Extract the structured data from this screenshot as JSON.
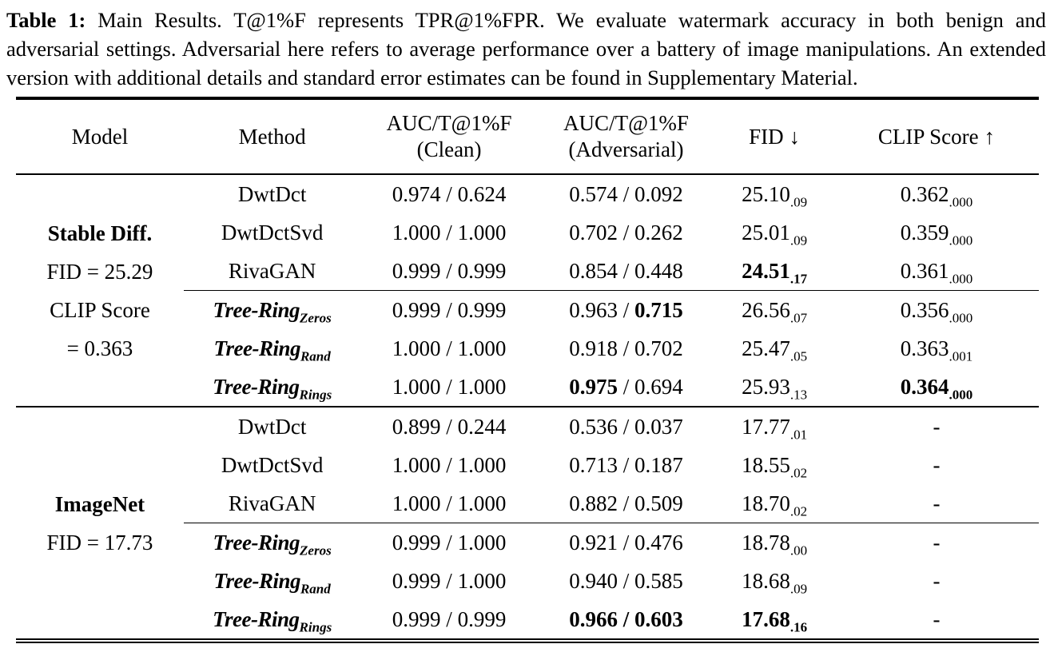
{
  "caption": {
    "label": "Table 1:",
    "text": "Main Results. T@1%F represents TPR@1%FPR. We evaluate watermark accuracy in both benign and adversarial settings. Adversarial here refers to average performance over a battery of image manipulations. An extended version with additional details and standard error estimates can be found in Supplementary Material."
  },
  "table": {
    "sep": " / ",
    "headers": {
      "model": "Model",
      "method": "Method",
      "clean_1": "AUC/T@1%F",
      "clean_2": "(Clean)",
      "adv_1": "AUC/T@1%F",
      "adv_2": "(Adversarial)",
      "fid": "FID",
      "fid_arrow": "↓",
      "clip": "CLIP Score",
      "clip_arrow": "↑"
    },
    "groups": [
      {
        "model_lines": [
          {
            "text": "Stable Diff.",
            "bold": true
          },
          {
            "text": "FID = 25.29",
            "bold": false
          },
          {
            "text": "CLIP Score",
            "bold": false
          },
          {
            "text": "= 0.363",
            "bold": false
          }
        ],
        "rows": [
          {
            "method": "DwtDct",
            "clean_a": "0.974",
            "clean_b": "0.624",
            "adv_a": "0.574",
            "adv_b": "0.092",
            "fid": "25.10",
            "fid_sub": ".09",
            "clip": "0.362",
            "clip_sub": ".000",
            "bold": []
          },
          {
            "method": "DwtDctSvd",
            "clean_a": "1.000",
            "clean_b": "1.000",
            "adv_a": "0.702",
            "adv_b": "0.262",
            "fid": "25.01",
            "fid_sub": ".09",
            "clip": "0.359",
            "clip_sub": ".000",
            "bold": []
          },
          {
            "method": "RivaGAN",
            "clean_a": "0.999",
            "clean_b": "0.999",
            "adv_a": "0.854",
            "adv_b": "0.448",
            "fid": "24.51",
            "fid_sub": ".17",
            "clip": "0.361",
            "clip_sub": ".000",
            "bold": [
              "fid"
            ]
          },
          {
            "method": "Tree-Ring",
            "method_sub": "Zeros",
            "clean_a": "0.999",
            "clean_b": "0.999",
            "adv_a": "0.963",
            "adv_b": "0.715",
            "fid": "26.56",
            "fid_sub": ".07",
            "clip": "0.356",
            "clip_sub": ".000",
            "bold": [
              "adv_b"
            ]
          },
          {
            "method": "Tree-Ring",
            "method_sub": "Rand",
            "clean_a": "1.000",
            "clean_b": "1.000",
            "adv_a": "0.918",
            "adv_b": "0.702",
            "fid": "25.47",
            "fid_sub": ".05",
            "clip": "0.363",
            "clip_sub": ".001",
            "bold": []
          },
          {
            "method": "Tree-Ring",
            "method_sub": "Rings",
            "clean_a": "1.000",
            "clean_b": "1.000",
            "adv_a": "0.975",
            "adv_b": "0.694",
            "fid": "25.93",
            "fid_sub": ".13",
            "clip": "0.364",
            "clip_sub": ".000",
            "bold": [
              "adv_a",
              "clip"
            ]
          }
        ]
      },
      {
        "model_lines": [
          {
            "text": "ImageNet",
            "bold": true
          },
          {
            "text": "FID = 17.73",
            "bold": false
          }
        ],
        "rows": [
          {
            "method": "DwtDct",
            "clean_a": "0.899",
            "clean_b": "0.244",
            "adv_a": "0.536",
            "adv_b": "0.037",
            "fid": "17.77",
            "fid_sub": ".01",
            "clip": "-",
            "bold": []
          },
          {
            "method": "DwtDctSvd",
            "clean_a": "1.000",
            "clean_b": "1.000",
            "adv_a": "0.713",
            "adv_b": "0.187",
            "fid": "18.55",
            "fid_sub": ".02",
            "clip": "-",
            "bold": []
          },
          {
            "method": "RivaGAN",
            "clean_a": "1.000",
            "clean_b": "1.000",
            "adv_a": "0.882",
            "adv_b": "0.509",
            "fid": "18.70",
            "fid_sub": ".02",
            "clip": "-",
            "bold": []
          },
          {
            "method": "Tree-Ring",
            "method_sub": "Zeros",
            "clean_a": "0.999",
            "clean_b": "1.000",
            "adv_a": "0.921",
            "adv_b": "0.476",
            "fid": "18.78",
            "fid_sub": ".00",
            "clip": "-",
            "bold": []
          },
          {
            "method": "Tree-Ring",
            "method_sub": "Rand",
            "clean_a": "0.999",
            "clean_b": "1.000",
            "adv_a": "0.940",
            "adv_b": "0.585",
            "fid": "18.68",
            "fid_sub": ".09",
            "clip": "-",
            "bold": []
          },
          {
            "method": "Tree-Ring",
            "method_sub": "Rings",
            "clean_a": "0.999",
            "clean_b": "0.999",
            "adv_a": "0.966",
            "adv_b": "0.603",
            "fid": "17.68",
            "fid_sub": ".16",
            "clip": "-",
            "bold": [
              "adv",
              "fid"
            ]
          }
        ]
      }
    ]
  }
}
